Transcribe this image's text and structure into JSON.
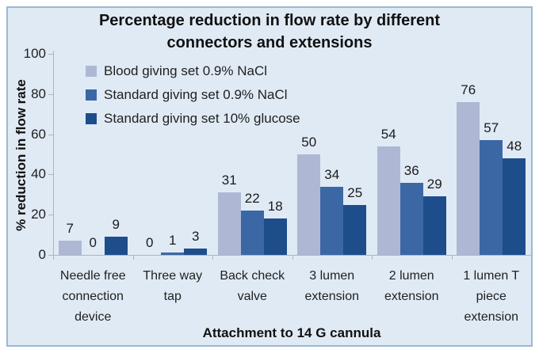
{
  "figure": {
    "background_color": "#e0eaf5",
    "border_color": "#9db8d2",
    "axis_line_color": "#aeb4bf",
    "text_color": "#111111"
  },
  "chart_data": {
    "type": "bar",
    "title": "Percentage reduction in flow rate by different connectors and extensions",
    "xlabel": "Attachment to 14 G cannula",
    "ylabel": "% reduction in flow rate",
    "ylim": [
      0,
      100
    ],
    "yticks": [
      0,
      20,
      40,
      60,
      80,
      100
    ],
    "grid": false,
    "legend_position": "inside-top-left",
    "data_labels": true,
    "categories": [
      "Needle free connection device",
      "Three way tap",
      "Back check valve",
      "3 lumen extension",
      "2 lumen extension",
      "1 lumen T piece extension"
    ],
    "series": [
      {
        "name": "Blood giving set 0.9% NaCl",
        "color": "#aeb8d5",
        "values": [
          7,
          0,
          31,
          50,
          54,
          76
        ]
      },
      {
        "name": "Standard giving set 0.9% NaCl",
        "color": "#3c67a5",
        "values": [
          0,
          1,
          22,
          34,
          36,
          57
        ]
      },
      {
        "name": "Standard giving set 10% glucose",
        "color": "#1e4d8c",
        "values": [
          9,
          3,
          18,
          25,
          29,
          48
        ]
      }
    ]
  }
}
